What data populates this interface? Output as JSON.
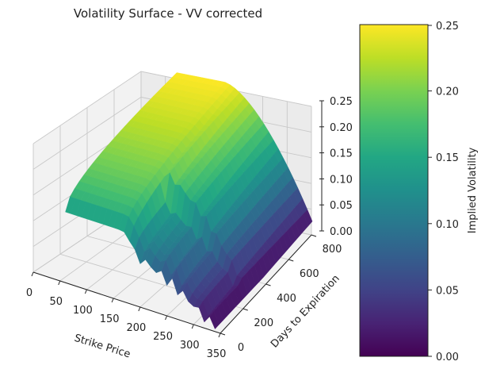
{
  "chart_data": {
    "type": "surface3d",
    "title": "Volatility Surface - VV corrected",
    "xlabel": "Strike Price",
    "ylabel": "Days to Expiration",
    "zlabel": "",
    "colorbar_label": "Implied Volatility",
    "colormap": "viridis",
    "xlim": [
      0,
      350
    ],
    "ylim": [
      0,
      800
    ],
    "zlim": [
      0,
      0.25
    ],
    "x_ticks": [
      "0",
      "50",
      "100",
      "150",
      "200",
      "250",
      "300",
      "350"
    ],
    "y_ticks": [
      "0",
      "200",
      "400",
      "600",
      "800"
    ],
    "z_ticks": [
      "0.00",
      "0.05",
      "0.10",
      "0.15",
      "0.20",
      "0.25"
    ],
    "colorbar_ticks": [
      "0.00",
      "0.05",
      "0.10",
      "0.15",
      "0.20",
      "0.25"
    ],
    "colorbar_range": [
      0,
      0.25
    ],
    "grid": true,
    "surface_description_values": {
      "strike_range": [
        60,
        340
      ],
      "days_range": [
        0,
        850
      ],
      "peak_iv": 0.25,
      "min_iv": 0.0
    }
  }
}
